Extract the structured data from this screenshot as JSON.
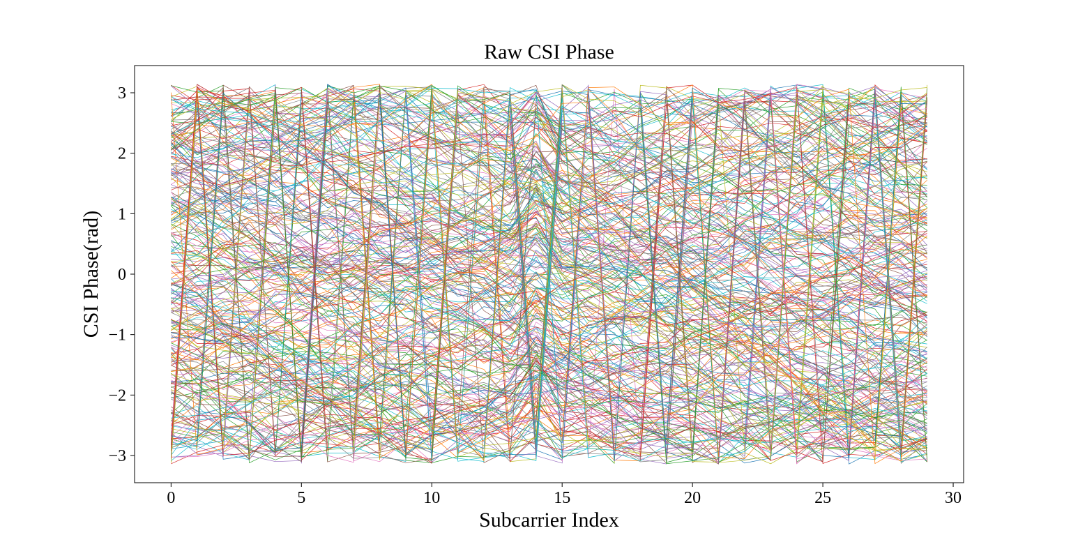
{
  "chart_data": {
    "type": "line",
    "title": "Raw CSI Phase",
    "xlabel": "Subcarrier Index",
    "ylabel": "CSI Phase(rad)",
    "xlim": [
      -1.4,
      30.4
    ],
    "ylim": [
      -3.45,
      3.45
    ],
    "x_ticks": [
      0,
      5,
      10,
      15,
      20,
      25,
      30
    ],
    "x_tick_labels": [
      "0",
      "5",
      "10",
      "15",
      "20",
      "25",
      "30"
    ],
    "y_ticks": [
      -3,
      -2,
      -1,
      0,
      1,
      2,
      3
    ],
    "y_tick_labels": [
      "−3",
      "−2",
      "−1",
      "0",
      "1",
      "2",
      "3"
    ],
    "x": [
      0,
      1,
      2,
      3,
      4,
      5,
      6,
      7,
      8,
      9,
      10,
      11,
      12,
      13,
      14,
      15,
      16,
      17,
      18,
      19,
      20,
      21,
      22,
      23,
      24,
      25,
      26,
      27,
      28,
      29
    ],
    "series_description": "Many overlapping raw CSI phase traces, each wrapped to [-π, π]; phase decreases with subcarrier index and wraps from -π to +π, producing a sawtooth pattern.",
    "series_count": 300,
    "phase_range": [
      -3.1416,
      3.1416
    ],
    "grid": false,
    "legend": "none",
    "palette": [
      "#1f77b4",
      "#ff7f0e",
      "#2ca02c",
      "#d62728",
      "#9467bd",
      "#8c564b",
      "#e377c2",
      "#7f7f7f",
      "#bcbd22",
      "#17becf"
    ]
  }
}
